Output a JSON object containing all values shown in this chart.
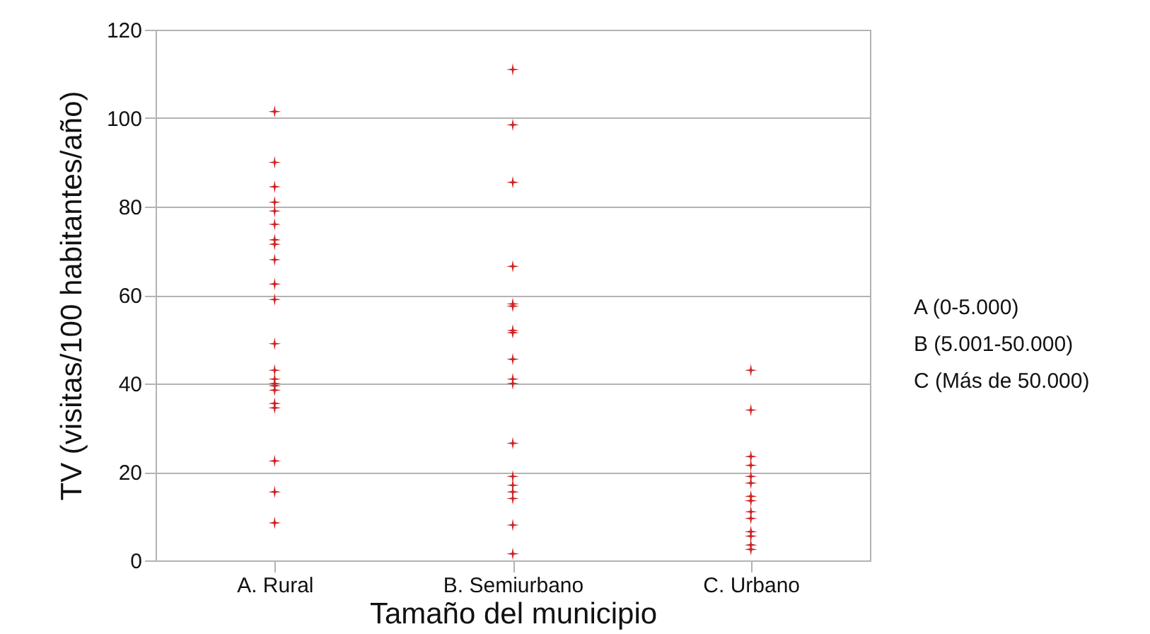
{
  "chart_data": {
    "type": "scatter",
    "xlabel": "Tamaño del municipio",
    "ylabel": "TV (visitas/100 habitantes/año)",
    "categories": [
      "A. Rural",
      "B. Semiurbano",
      "C. Urbano"
    ],
    "series": [
      {
        "color": "#cc2222",
        "x": [
          "A. Rural",
          "A. Rural",
          "A. Rural",
          "A. Rural",
          "A. Rural",
          "A. Rural",
          "A. Rural",
          "A. Rural",
          "A. Rural",
          "A. Rural",
          "A. Rural",
          "A. Rural",
          "A. Rural",
          "A. Rural",
          "A. Rural",
          "A. Rural",
          "A. Rural",
          "A. Rural",
          "A. Rural",
          "A. Rural",
          "A. Rural",
          "A. Rural",
          "B. Semiurbano",
          "B. Semiurbano",
          "B. Semiurbano",
          "B. Semiurbano",
          "B. Semiurbano",
          "B. Semiurbano",
          "B. Semiurbano",
          "B. Semiurbano",
          "B. Semiurbano",
          "B. Semiurbano",
          "B. Semiurbano",
          "B. Semiurbano",
          "B. Semiurbano",
          "B. Semiurbano",
          "B. Semiurbano",
          "B. Semiurbano",
          "B. Semiurbano",
          "B. Semiurbano",
          "C. Urbano",
          "C. Urbano",
          "C. Urbano",
          "C. Urbano",
          "C. Urbano",
          "C. Urbano",
          "C. Urbano",
          "C. Urbano",
          "C. Urbano",
          "C. Urbano",
          "C. Urbano",
          "C. Urbano",
          "C. Urbano",
          "C. Urbano"
        ],
        "values": [
          101.5,
          90,
          84.5,
          81,
          79,
          76,
          72.5,
          71.5,
          68,
          62.5,
          59,
          49,
          43,
          41,
          40,
          39.5,
          38.5,
          35.5,
          34.5,
          22.5,
          15.5,
          8.5,
          111,
          98.5,
          85.5,
          66.5,
          58,
          57.5,
          52,
          51.5,
          45.5,
          41,
          40,
          26.5,
          19,
          17,
          15.5,
          14,
          8,
          1.5,
          43,
          34,
          23.5,
          21.5,
          19,
          17.5,
          14.5,
          13.5,
          11,
          9.5,
          6.5,
          5.5,
          3.5,
          2.5
        ]
      }
    ],
    "ylim": [
      0,
      120
    ],
    "yticks": [
      0,
      20,
      40,
      60,
      80,
      100,
      120
    ],
    "grid": "y",
    "marker": "star",
    "legend": false,
    "annotations": [
      "A (0-5.000)",
      "B (5.001-50.000)",
      "C (Más de 50.000)"
    ]
  }
}
